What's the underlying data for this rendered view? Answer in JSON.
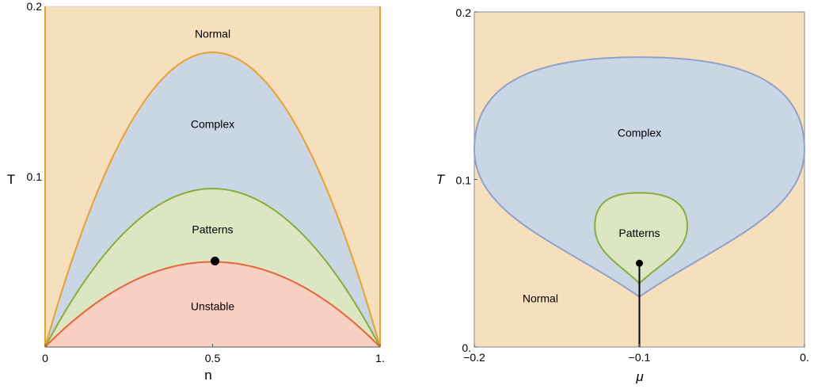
{
  "colors": {
    "normal": "#f6dfbd",
    "complex": "#cbd6e5",
    "patterns": "#dde6c3",
    "unstable": "#f8cfc0",
    "orange_line": "#e9a02e",
    "green_line": "#88ad3c",
    "red_line": "#e5653b",
    "blue_line": "#8ea2c9",
    "point": "#000000"
  },
  "chart_data": [
    {
      "type": "area",
      "xlabel": "n",
      "ylabel": "T",
      "xlim": [
        0,
        1
      ],
      "ylim": [
        0,
        0.2
      ],
      "xticks": [
        {
          "v": 0,
          "label": "0"
        },
        {
          "v": 0.5,
          "label": "0.5"
        },
        {
          "v": 1,
          "label": "1."
        }
      ],
      "yticks": [
        {
          "v": 0.1,
          "label": "0.1"
        },
        {
          "v": 0.2,
          "label": "0.2"
        }
      ],
      "boundaries": [
        {
          "name": "normal-complex",
          "peak_x": 0.5,
          "peak_T": 0.173
        },
        {
          "name": "complex-patterns",
          "peak_x": 0.5,
          "peak_T": 0.093
        },
        {
          "name": "patterns-unstable",
          "peak_x": 0.5,
          "peak_T": 0.05
        }
      ],
      "point": {
        "x": 0.5,
        "T": 0.05
      },
      "regions": [
        {
          "label": "Normal",
          "x": 0.5,
          "T": 0.184
        },
        {
          "label": "Complex",
          "x": 0.5,
          "T": 0.131
        },
        {
          "label": "Patterns",
          "x": 0.5,
          "T": 0.069
        },
        {
          "label": "Unstable",
          "x": 0.5,
          "T": 0.024
        }
      ]
    },
    {
      "type": "area",
      "xlabel": "μ",
      "ylabel": "T",
      "xlim": [
        -0.2,
        0
      ],
      "ylim": [
        0,
        0.2
      ],
      "xticks": [
        {
          "v": -0.2,
          "label": "−0.2"
        },
        {
          "v": -0.1,
          "label": "−0.1"
        },
        {
          "v": 0,
          "label": "0."
        }
      ],
      "yticks": [
        {
          "v": 0,
          "label": "0."
        },
        {
          "v": 0.1,
          "label": "0.1"
        },
        {
          "v": 0.2,
          "label": "0.2"
        }
      ],
      "complex_boundary": {
        "bottom": [
          -0.1,
          0.03
        ],
        "top": [
          -0.1,
          0.173
        ],
        "left": [
          -0.2,
          0.118
        ],
        "right": [
          0,
          0.118
        ]
      },
      "patterns_boundary": {
        "bottom": [
          -0.1,
          0.038
        ],
        "top": [
          -0.1,
          0.092
        ],
        "left": [
          -0.127,
          0.072
        ],
        "right": [
          -0.071,
          0.072
        ]
      },
      "point": {
        "x": -0.1,
        "T": 0.05
      },
      "vertical_line": {
        "x": -0.1,
        "T_from": 0,
        "T_to": 0.05
      },
      "regions": [
        {
          "label": "Complex",
          "x": -0.1,
          "T": 0.128
        },
        {
          "label": "Patterns",
          "x": -0.1,
          "T": 0.068
        },
        {
          "label": "Normal",
          "x": -0.16,
          "T": 0.029
        }
      ]
    }
  ]
}
